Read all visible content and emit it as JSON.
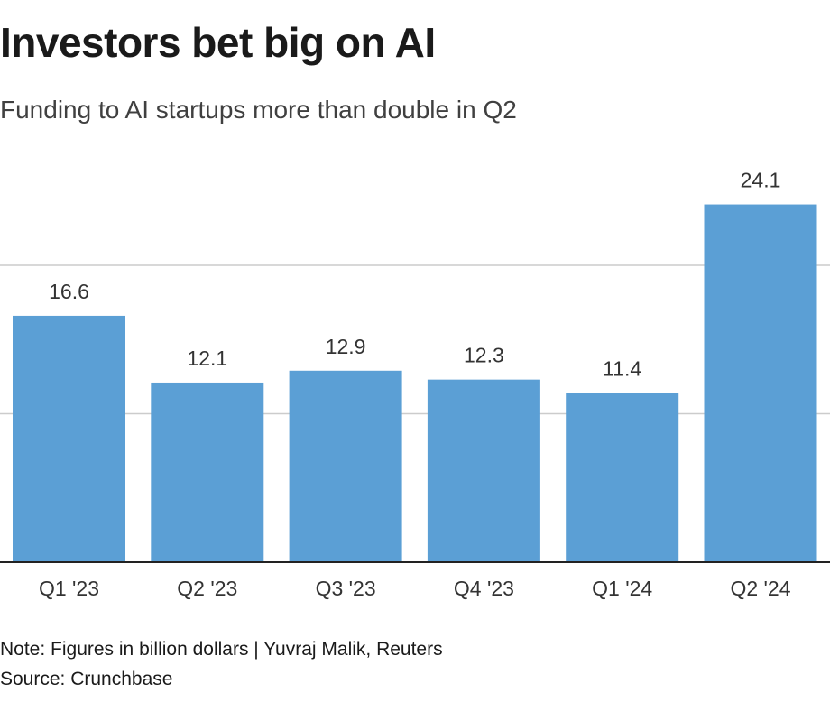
{
  "title": "Investors bet big on AI",
  "subtitle": "Funding to AI startups more than double in Q2",
  "note": "Note: Figures in billion dollars | Yuvraj Malik, Reuters",
  "source": "Source: Crunchbase",
  "colors": {
    "bar": "#5b9fd5",
    "grid": "#cccccc",
    "axis": "#222222"
  },
  "chart_data": {
    "type": "bar",
    "title": "Investors bet big on AI",
    "subtitle": "Funding to AI startups more than double in Q2",
    "xlabel": "",
    "ylabel": "",
    "categories": [
      "Q1 '23",
      "Q2 '23",
      "Q3 '23",
      "Q4 '23",
      "Q1 '24",
      "Q2 '24"
    ],
    "values": [
      16.6,
      12.1,
      12.9,
      12.3,
      11.4,
      24.1
    ],
    "value_labels": [
      "16.6",
      "12.1",
      "12.9",
      "12.3",
      "11.4",
      "24.1"
    ],
    "units": "billion dollars",
    "ylim": [
      0,
      28
    ],
    "gridlines": [
      10,
      20
    ],
    "grid": true,
    "legend": "none"
  }
}
